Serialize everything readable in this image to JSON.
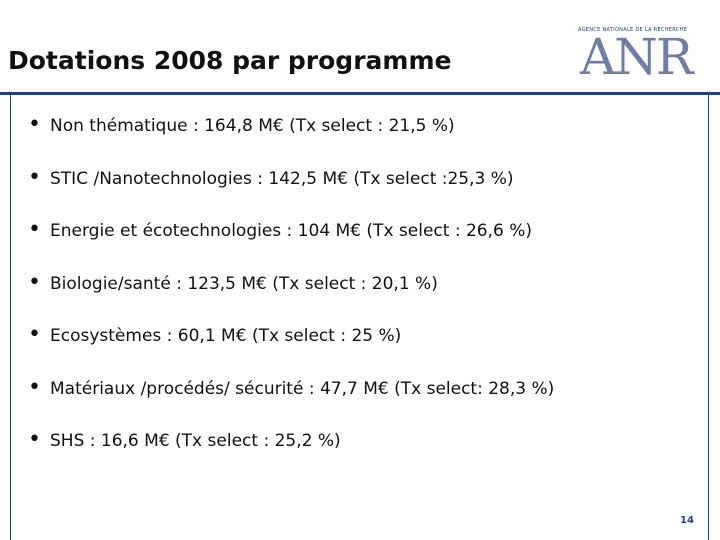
{
  "header": {
    "title": "Dotations 2008 par programme",
    "logo_small": "AGENCE NATIONALE DE LA RECHERCHE",
    "logo": "ANR"
  },
  "bullets": [
    "Non thématique : 164,8 M€ (Tx select : 21,5 %)",
    "STIC /Nanotechnologies : 142,5 M€ (Tx select :25,3 %)",
    "Energie et écotechnologies : 104 M€ (Tx select : 26,6 %)",
    "Biologie/santé : 123,5 M€ (Tx select : 20,1 %)",
    "Ecosystèmes : 60,1 M€ (Tx select : 25 %)",
    "Matériaux /procédés/ sécurité : 47,7 M€ (Tx select: 28,3 %)",
    "SHS : 16,6 M€ (Tx select : 25,2 %)"
  ],
  "page_number": "14"
}
